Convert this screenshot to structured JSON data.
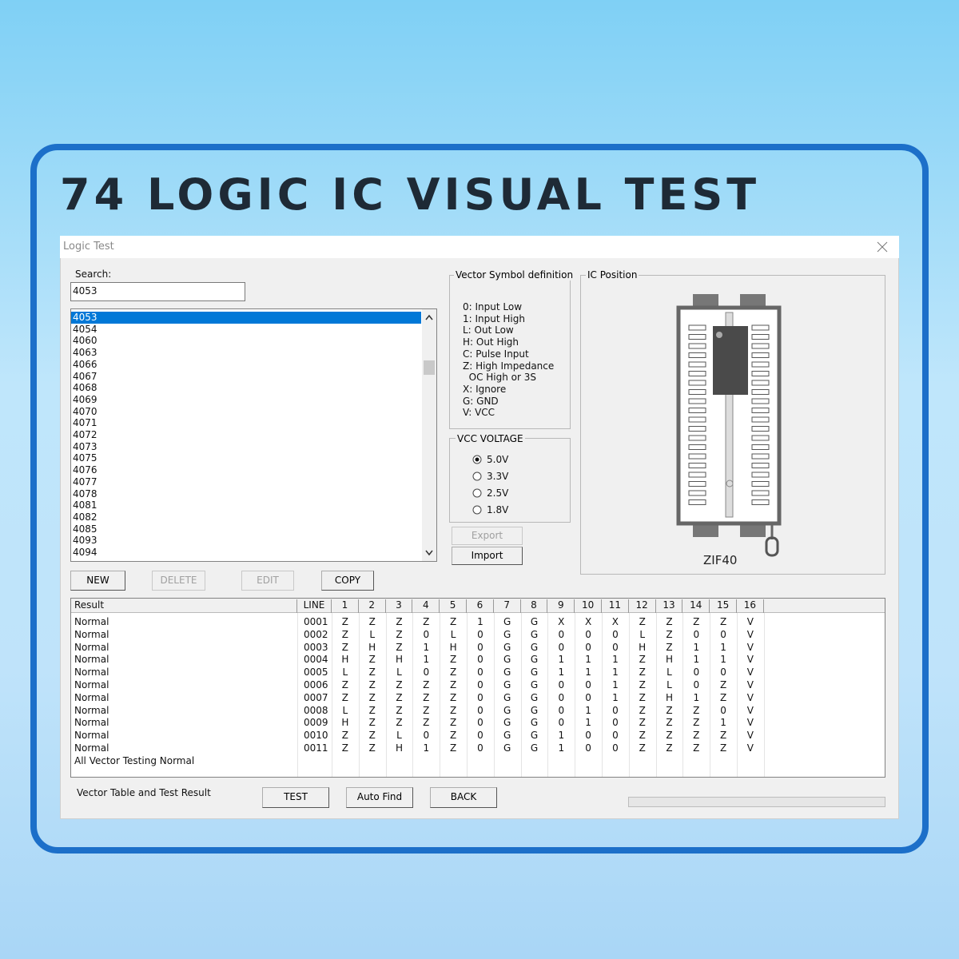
{
  "header": {
    "title": "74 LOGIC IC VISUAL TEST"
  },
  "window": {
    "title": "Logic Test"
  },
  "search": {
    "label": "Search:",
    "value": "4053"
  },
  "list": {
    "items": [
      "4053",
      "4054",
      "4060",
      "4063",
      "4066",
      "4067",
      "4068",
      "4069",
      "4070",
      "4071",
      "4072",
      "4073",
      "4075",
      "4076",
      "4077",
      "4078",
      "4081",
      "4082",
      "4085",
      "4093",
      "4094"
    ],
    "selected": 0
  },
  "list_buttons": [
    {
      "label": "NEW",
      "enabled": true
    },
    {
      "label": "DELETE",
      "enabled": false
    },
    {
      "label": "EDIT",
      "enabled": false
    },
    {
      "label": "COPY",
      "enabled": true
    }
  ],
  "vector_symbols": {
    "title": "Vector Symbol definition",
    "lines": [
      "0: Input Low",
      "1: Input High",
      "L: Out Low",
      "H: Out High",
      "C: Pulse Input",
      "Z: High Impedance",
      "  OC High or 3S",
      "X: Ignore",
      "G: GND",
      "V: VCC"
    ]
  },
  "vcc": {
    "title": "VCC VOLTAGE",
    "options": [
      "5.0V",
      "3.3V",
      "2.5V",
      "1.8V"
    ],
    "selected": 0
  },
  "io_buttons": [
    {
      "label": "Export",
      "enabled": false
    },
    {
      "label": "Import",
      "enabled": true
    }
  ],
  "ic_position": {
    "title": "IC Position",
    "socket": "ZIF40"
  },
  "table": {
    "header": [
      "Result",
      "LINE",
      "1",
      "2",
      "3",
      "4",
      "5",
      "6",
      "7",
      "8",
      "9",
      "10",
      "11",
      "12",
      "13",
      "14",
      "15",
      "16"
    ],
    "rows": [
      [
        "Normal",
        "0001",
        "Z",
        "Z",
        "Z",
        "Z",
        "Z",
        "1",
        "G",
        "G",
        "X",
        "X",
        "X",
        "Z",
        "Z",
        "Z",
        "Z",
        "V"
      ],
      [
        "Normal",
        "0002",
        "Z",
        "L",
        "Z",
        "0",
        "L",
        "0",
        "G",
        "G",
        "0",
        "0",
        "0",
        "L",
        "Z",
        "0",
        "0",
        "V"
      ],
      [
        "Normal",
        "0003",
        "Z",
        "H",
        "Z",
        "1",
        "H",
        "0",
        "G",
        "G",
        "0",
        "0",
        "0",
        "H",
        "Z",
        "1",
        "1",
        "V"
      ],
      [
        "Normal",
        "0004",
        "H",
        "Z",
        "H",
        "1",
        "Z",
        "0",
        "G",
        "G",
        "1",
        "1",
        "1",
        "Z",
        "H",
        "1",
        "1",
        "V"
      ],
      [
        "Normal",
        "0005",
        "L",
        "Z",
        "L",
        "0",
        "Z",
        "0",
        "G",
        "G",
        "1",
        "1",
        "1",
        "Z",
        "L",
        "0",
        "0",
        "V"
      ],
      [
        "Normal",
        "0006",
        "Z",
        "Z",
        "Z",
        "Z",
        "Z",
        "0",
        "G",
        "G",
        "0",
        "0",
        "1",
        "Z",
        "L",
        "0",
        "Z",
        "V"
      ],
      [
        "Normal",
        "0007",
        "Z",
        "Z",
        "Z",
        "Z",
        "Z",
        "0",
        "G",
        "G",
        "0",
        "0",
        "1",
        "Z",
        "H",
        "1",
        "Z",
        "V"
      ],
      [
        "Normal",
        "0008",
        "L",
        "Z",
        "Z",
        "Z",
        "Z",
        "0",
        "G",
        "G",
        "0",
        "1",
        "0",
        "Z",
        "Z",
        "Z",
        "0",
        "V"
      ],
      [
        "Normal",
        "0009",
        "H",
        "Z",
        "Z",
        "Z",
        "Z",
        "0",
        "G",
        "G",
        "0",
        "1",
        "0",
        "Z",
        "Z",
        "Z",
        "1",
        "V"
      ],
      [
        "Normal",
        "0010",
        "Z",
        "Z",
        "L",
        "0",
        "Z",
        "0",
        "G",
        "G",
        "1",
        "0",
        "0",
        "Z",
        "Z",
        "Z",
        "Z",
        "V"
      ],
      [
        "Normal",
        "0011",
        "Z",
        "Z",
        "H",
        "1",
        "Z",
        "0",
        "G",
        "G",
        "1",
        "0",
        "0",
        "Z",
        "Z",
        "Z",
        "Z",
        "V"
      ]
    ],
    "summary": "All Vector Testing Normal"
  },
  "footer": {
    "label": "Vector Table and Test Result",
    "buttons": [
      "TEST",
      "Auto Find",
      "BACK"
    ]
  }
}
